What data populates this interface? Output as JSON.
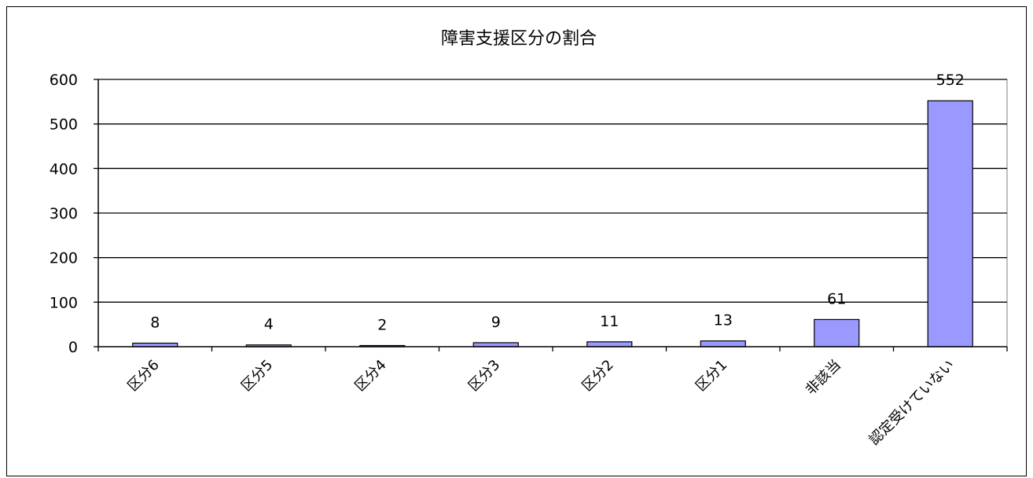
{
  "chart_data": {
    "type": "bar",
    "title": "障害支援区分の割合",
    "categories": [
      "区分6",
      "区分5",
      "区分4",
      "区分3",
      "区分2",
      "区分1",
      "非該当",
      "認定受けていない"
    ],
    "values": [
      8,
      4,
      2,
      9,
      11,
      13,
      61,
      552
    ],
    "yticks": [
      "0",
      "100",
      "200",
      "300",
      "400",
      "500",
      "600"
    ],
    "ylim": [
      0,
      600
    ],
    "grid": true,
    "legend": "none",
    "bar_color": "#9999ff",
    "bar_edge_color": "#000000"
  }
}
